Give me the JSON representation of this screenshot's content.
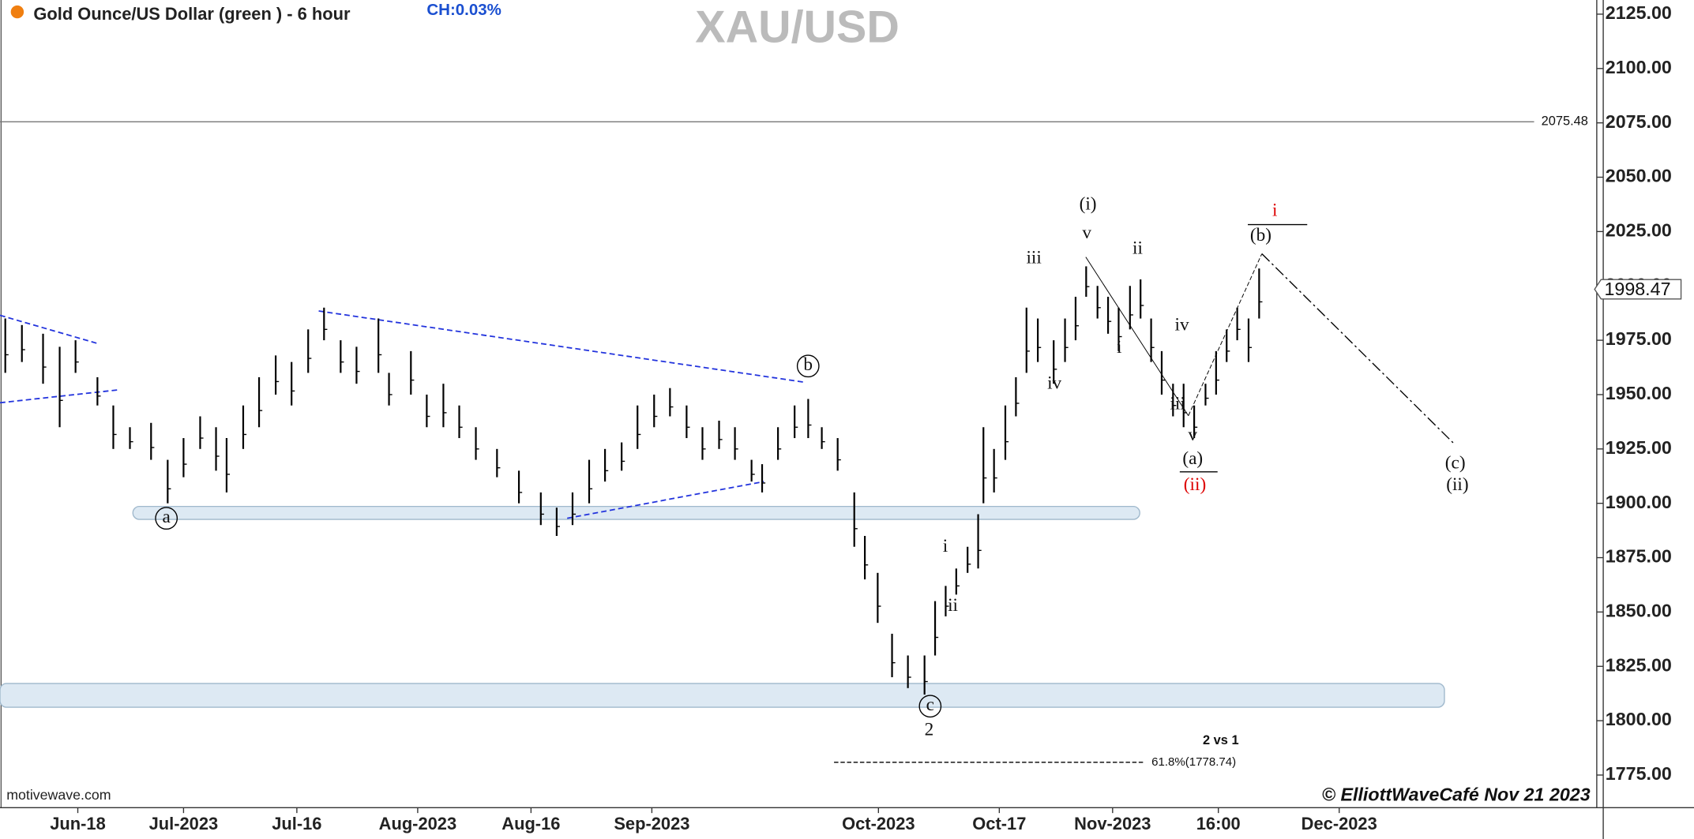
{
  "chart_data": {
    "type": "ohlc",
    "title": "Gold Ounce/US Dollar (green ) - 6 hour",
    "change": "CH:0.03%",
    "watermark": "XAU/USD",
    "source": "motivewave.com",
    "credit": "© ElliottWaveCafé Nov 21 2023",
    "color": "#000000",
    "x": [
      7.4,
      9.6,
      12.4,
      14.6,
      16.7,
      19.6,
      21.7,
      23.9,
      26.7,
      28.9,
      31.0,
      33.2,
      35.3,
      36.7,
      38.9,
      41.0,
      43.2,
      45.3,
      47.5,
      49.6,
      51.8,
      53.9,
      56.8,
      58.2,
      61.1,
      63.2,
      65.4,
      67.5,
      69.7,
      72.5,
      75.4,
      78.3,
      80.4,
      82.5,
      84.7,
      86.8,
      89.0,
      91.1,
      93.3,
      95.4,
      97.6,
      99.7,
      101.9,
      104.0,
      106.2,
      107.6,
      109.7,
      111.9,
      113.7,
      115.5,
      117.6,
      119.8,
      121.2,
      122.9,
      124.8,
      126.9,
      129.1,
      130.5,
      131.9,
      133.3,
      134.8,
      136.2,
      136.9,
      138.3,
      139.8,
      141.2,
      142.6,
      144.1,
      146.2,
      147.7,
      149.1,
      150.5,
      152.0,
      153.4,
      154.8,
      156.3,
      157.7,
      159.1,
      160.5,
      162.0,
      163.4,
      164.8,
      166.3,
      167.7,
      169.1,
      170.5,
      172.0,
      173.4
    ],
    "high": [
      1985,
      1982,
      1978,
      1972,
      1975,
      1958,
      1945,
      1935,
      1937,
      1920,
      1930,
      1940,
      1935,
      1930,
      1945,
      1958,
      1968,
      1965,
      1980,
      1990,
      1975,
      1972,
      1985,
      1960,
      1970,
      1950,
      1955,
      1945,
      1935,
      1925,
      1915,
      1905,
      1898,
      1905,
      1920,
      1925,
      1928,
      1945,
      1950,
      1953,
      1945,
      1935,
      1938,
      1935,
      1920,
      1918,
      1935,
      1945,
      1948,
      1935,
      1930,
      1905,
      1885,
      1868,
      1840,
      1830,
      1830,
      1855,
      1862,
      1870,
      1880,
      1895,
      1935,
      1925,
      1945,
      1958,
      1990,
      1985,
      1975,
      1985,
      1995,
      2009,
      2000,
      1995,
      1990,
      2000,
      2003,
      1985,
      1970,
      1955,
      1955,
      1945,
      1955,
      1970,
      1980,
      1990,
      1985,
      2008
    ],
    "low": [
      1960,
      1965,
      1955,
      1935,
      1960,
      1945,
      1925,
      1925,
      1920,
      1900,
      1912,
      1925,
      1915,
      1905,
      1925,
      1935,
      1950,
      1945,
      1960,
      1975,
      1960,
      1955,
      1960,
      1945,
      1950,
      1935,
      1935,
      1930,
      1920,
      1912,
      1900,
      1890,
      1885,
      1890,
      1900,
      1910,
      1915,
      1925,
      1935,
      1940,
      1930,
      1920,
      1925,
      1920,
      1910,
      1905,
      1920,
      1930,
      1930,
      1925,
      1915,
      1880,
      1865,
      1845,
      1820,
      1815,
      1812,
      1830,
      1848,
      1858,
      1868,
      1870,
      1900,
      1905,
      1920,
      1940,
      1960,
      1965,
      1955,
      1965,
      1975,
      1995,
      1985,
      1978,
      1970,
      1980,
      1985,
      1965,
      1950,
      1940,
      1935,
      1930,
      1945,
      1950,
      1965,
      1975,
      1965,
      1985
    ],
    "xlim": [
      6.7,
      218.1
    ],
    "xticks": [
      {
        "value": 17,
        "label": "Jun-18"
      },
      {
        "value": 31,
        "label": "Jul-2023"
      },
      {
        "value": 46,
        "label": "Jul-16"
      },
      {
        "value": 62,
        "label": "Aug-2023"
      },
      {
        "value": 77,
        "label": "Aug-16"
      },
      {
        "value": 93,
        "label": "Sep-2023"
      },
      {
        "value": 123,
        "label": "Oct-2023"
      },
      {
        "value": 139,
        "label": "Oct-17"
      },
      {
        "value": 154,
        "label": "Nov-2023"
      },
      {
        "value": 168,
        "label": "16:00"
      },
      {
        "value": 184,
        "label": "Dec-2023"
      }
    ],
    "ylim": [
      1760,
      2131.5
    ],
    "yticks": [
      {
        "value": 1775,
        "label": "1775.00"
      },
      {
        "value": 1800,
        "label": "1800.00"
      },
      {
        "value": 1825,
        "label": "1825.00"
      },
      {
        "value": 1850,
        "label": "1850.00"
      },
      {
        "value": 1875,
        "label": "1875.00"
      },
      {
        "value": 1900,
        "label": "1900.00"
      },
      {
        "value": 1925,
        "label": "1925.00"
      },
      {
        "value": 1950,
        "label": "1950.00"
      },
      {
        "value": 1975,
        "label": "1975.00"
      },
      {
        "value": 2000,
        "label": "2000.00"
      },
      {
        "value": 2025,
        "label": "2025.00"
      },
      {
        "value": 2050,
        "label": "2050.00"
      },
      {
        "value": 2075,
        "label": "2075.00"
      },
      {
        "value": 2100,
        "label": "2100.00"
      },
      {
        "value": 2125,
        "label": "2125.00"
      }
    ],
    "ref_line": 2075.48,
    "last_price": 1998.47,
    "annotations": [
      "(i)",
      "v",
      "iii",
      "iv",
      "ii",
      "i",
      "iv",
      "iii",
      "v",
      "(a)",
      "(ii)",
      "i",
      "(b)",
      "(c)",
      "(ii)",
      "b",
      "a",
      "c",
      "2",
      "i",
      "ii",
      "2 vs 1",
      "61.8%(1778.74)"
    ]
  }
}
